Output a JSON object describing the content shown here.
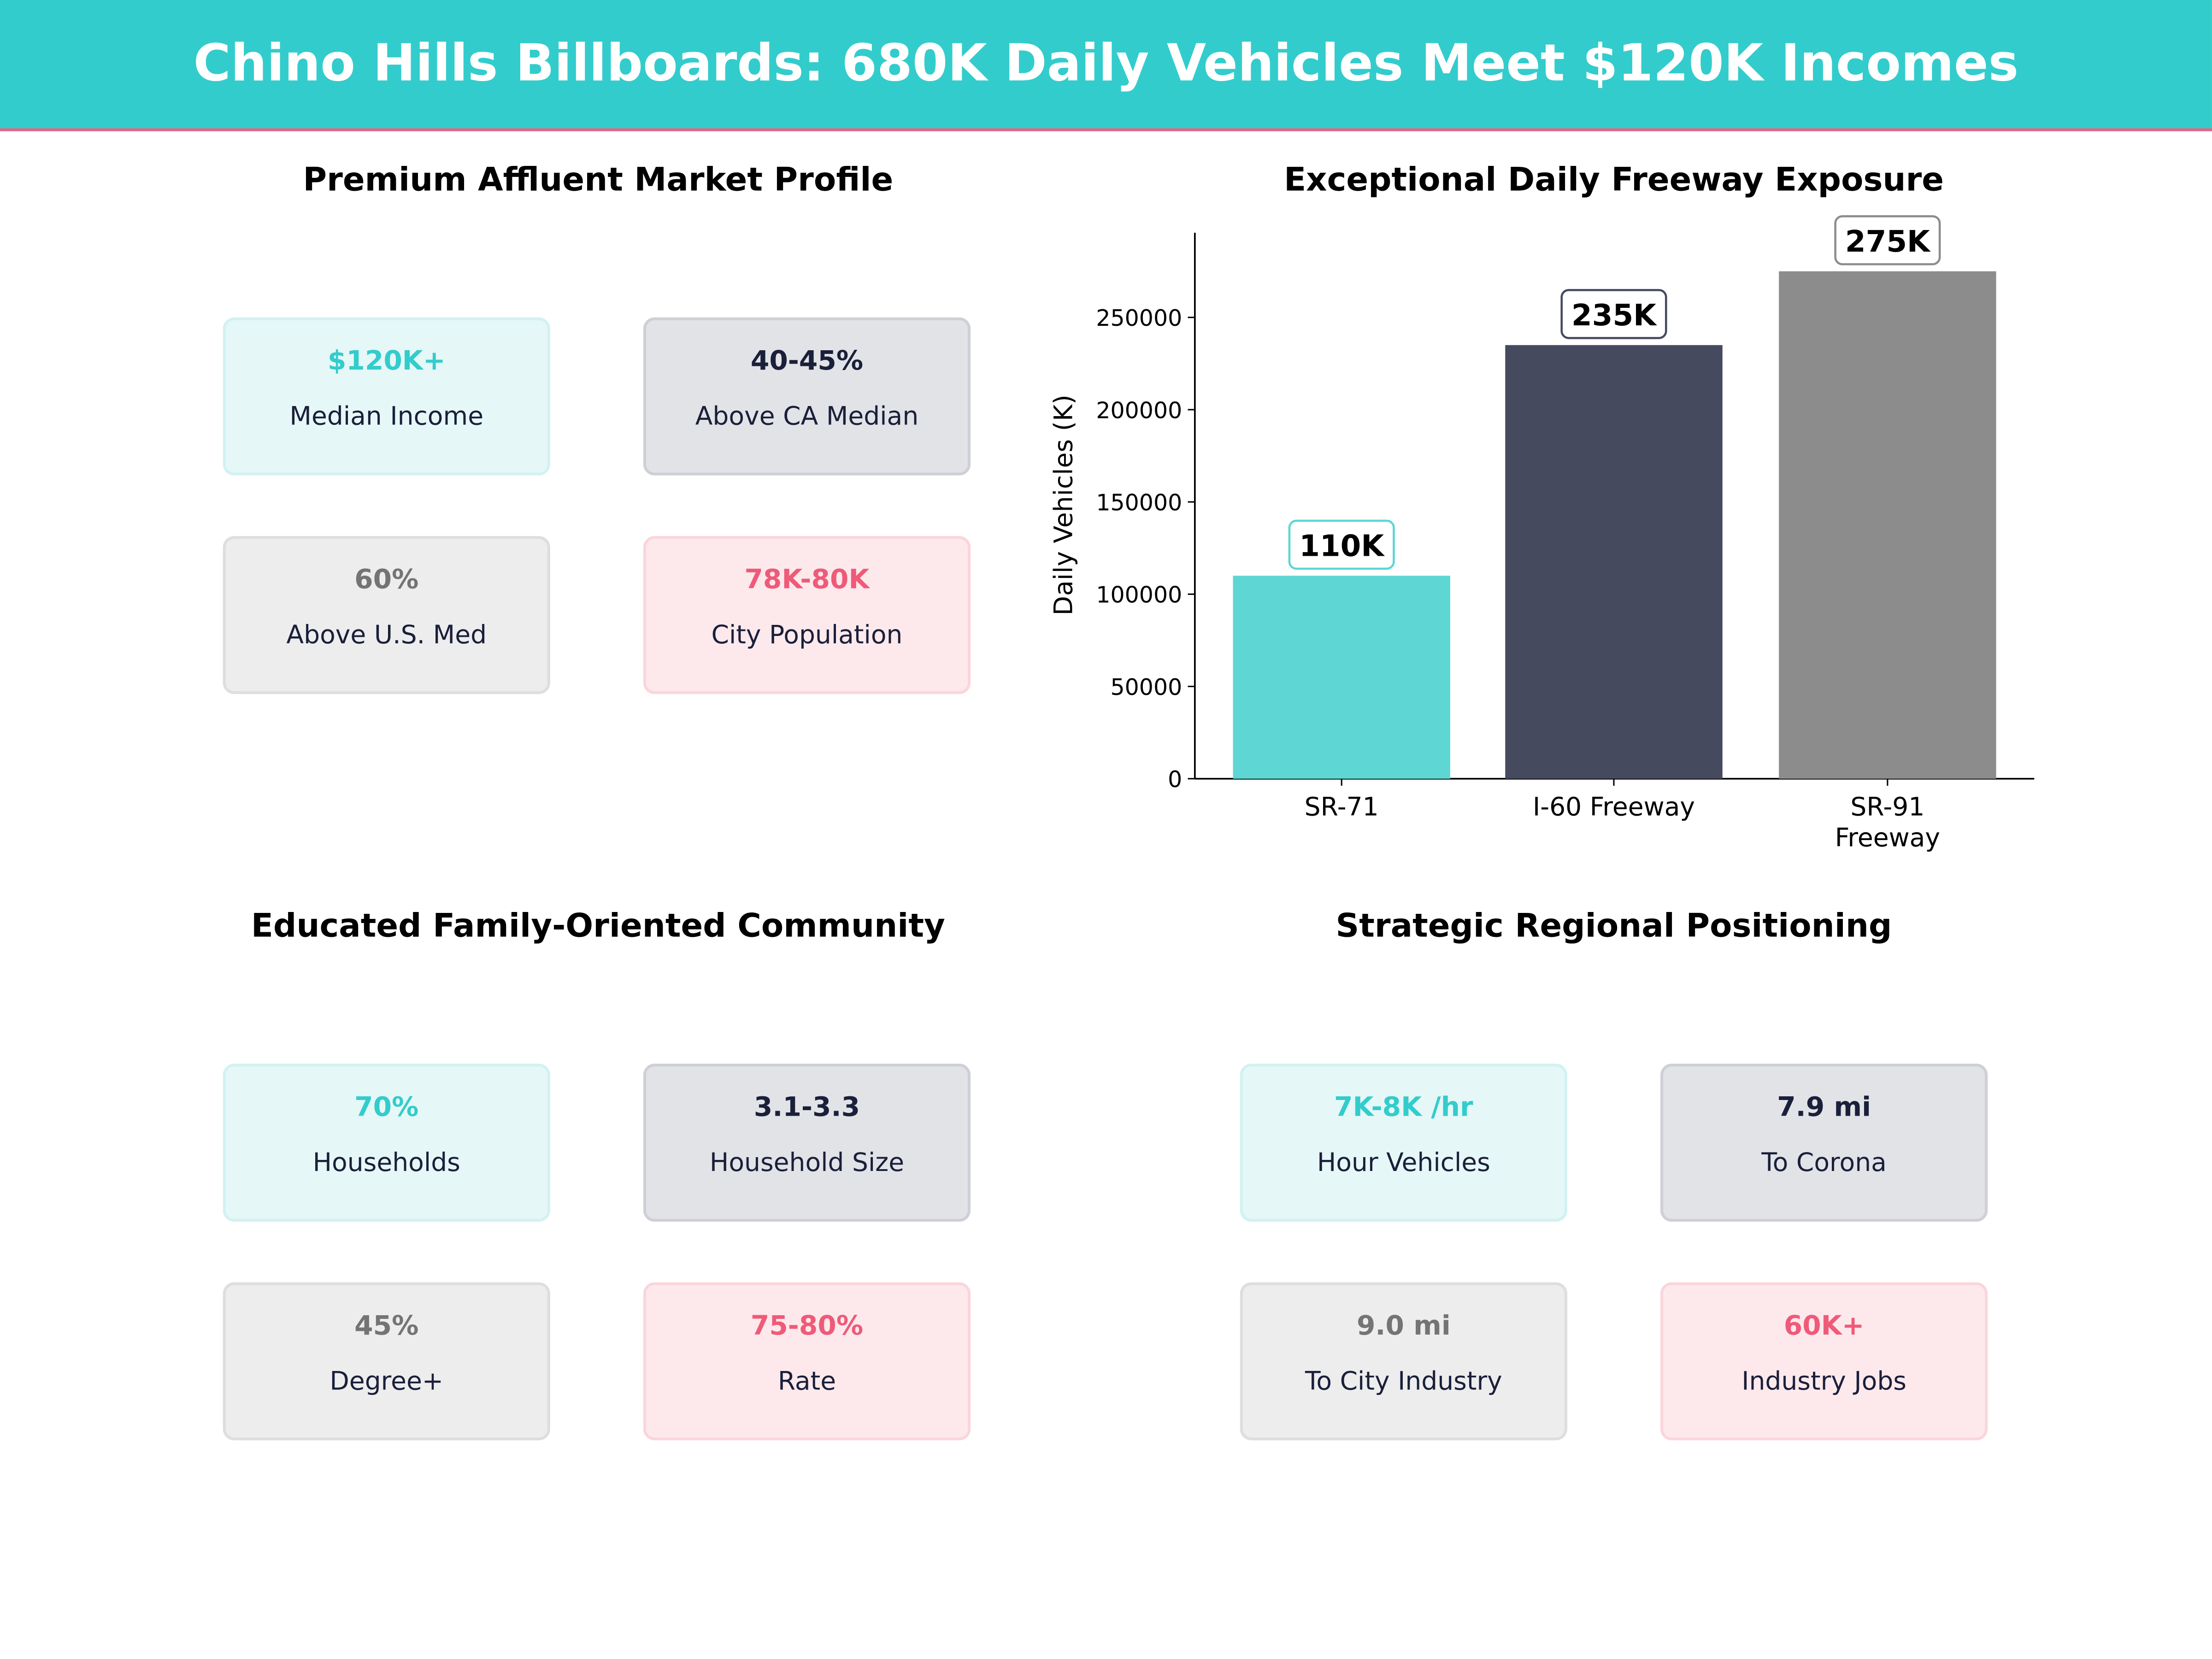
{
  "header": {
    "title": "Chino Hills Billboards: 680K Daily Vehicles Meet $120K Incomes",
    "bg_color": "#33cccc",
    "accent": "#f06080"
  },
  "panels": [
    {
      "title": "Premium Affluent Market Profile",
      "cards": [
        {
          "value": "$120K+",
          "label": "Median Income"
        },
        {
          "value": "40-45%",
          "label": "Above CA Median"
        },
        {
          "value": "60%",
          "label": "Above U.S. Med"
        },
        {
          "value": "78K-80K",
          "label": "City Population"
        }
      ]
    },
    {
      "title": "Educated Family-Oriented Community",
      "cards": [
        {
          "value": "70%",
          "label": "Households"
        },
        {
          "value": "3.1-3.3",
          "label": "Household Size"
        },
        {
          "value": "45%",
          "label": "Degree+"
        },
        {
          "value": "75-80%",
          "label": "Rate"
        }
      ]
    },
    {
      "title": "Strategic Regional Positioning",
      "cards": [
        {
          "value": "7K-8K /hr",
          "label": "Hour Vehicles"
        },
        {
          "value": "7.9 mi",
          "label": "To Corona"
        },
        {
          "value": "9.0 mi",
          "label": "To City Industry"
        },
        {
          "value": "60K+",
          "label": "Industry Jobs"
        }
      ]
    }
  ],
  "chart_data": {
    "type": "bar",
    "title": "Exceptional Daily Freeway Exposure",
    "categories": [
      "SR-71",
      "I-60 Freeway",
      "SR-91 Freeway"
    ],
    "values": [
      110000,
      235000,
      275000
    ],
    "data_labels": [
      "110K",
      "235K",
      "275K"
    ],
    "colors": [
      "#5dd6d4",
      "#454a5f",
      "#8c8c8c"
    ],
    "xlabel": "",
    "ylabel": "Daily Vehicles (K)",
    "ylim": [
      0,
      295000
    ],
    "yticks": [
      0,
      50000,
      100000,
      150000,
      200000,
      250000
    ],
    "grid": false
  }
}
